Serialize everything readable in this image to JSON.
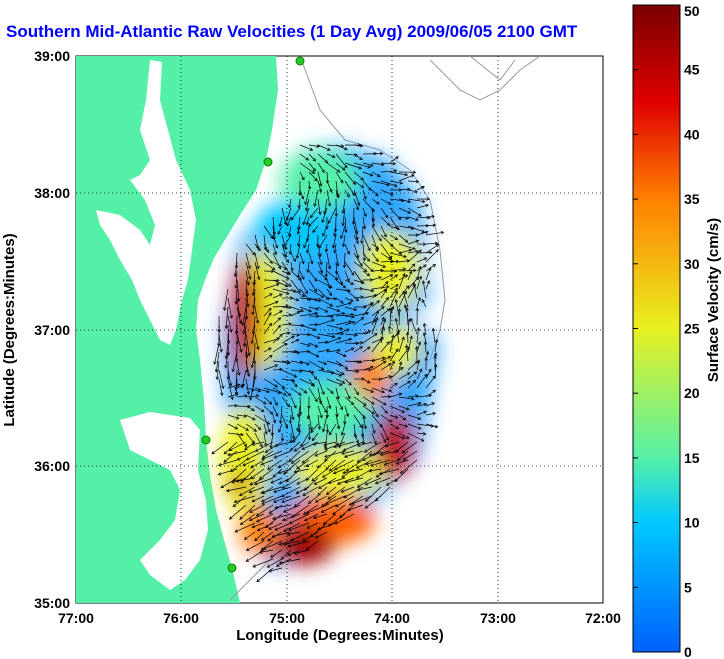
{
  "title": "Southern Mid-Atlantic Raw Velocities (1 Day Avg) 2009/06/05 2100 GMT",
  "map": {
    "xlabel": "Longitude (Degrees:Minutes)",
    "ylabel": "Latitude (Degrees:Minutes)",
    "x_ticks": [
      "77:00",
      "76:00",
      "75:00",
      "74:00",
      "73:00",
      "72:00"
    ],
    "y_ticks": [
      "39:00",
      "38:00",
      "37:00",
      "36:00",
      "35:00"
    ],
    "lon_range": [
      -77,
      -72
    ],
    "lat_range": [
      35,
      39
    ],
    "grid": true,
    "land_color": "#55f0a8",
    "ocean_color": "#ffffff"
  },
  "colorbar": {
    "label": "Surface Velocity (cm/s)",
    "ticks": [
      "0",
      "5",
      "10",
      "15",
      "20",
      "25",
      "30",
      "35",
      "40",
      "45",
      "50"
    ],
    "range": [
      0,
      50
    ],
    "colors": [
      "#0080ff",
      "#00e0ff",
      "#55f0a8",
      "#e8f020",
      "#ff8000",
      "#e00000",
      "#7a0000"
    ]
  },
  "colors": {
    "title": "#0000ff",
    "arrows": "#000000",
    "stations": "#22cc22"
  }
}
